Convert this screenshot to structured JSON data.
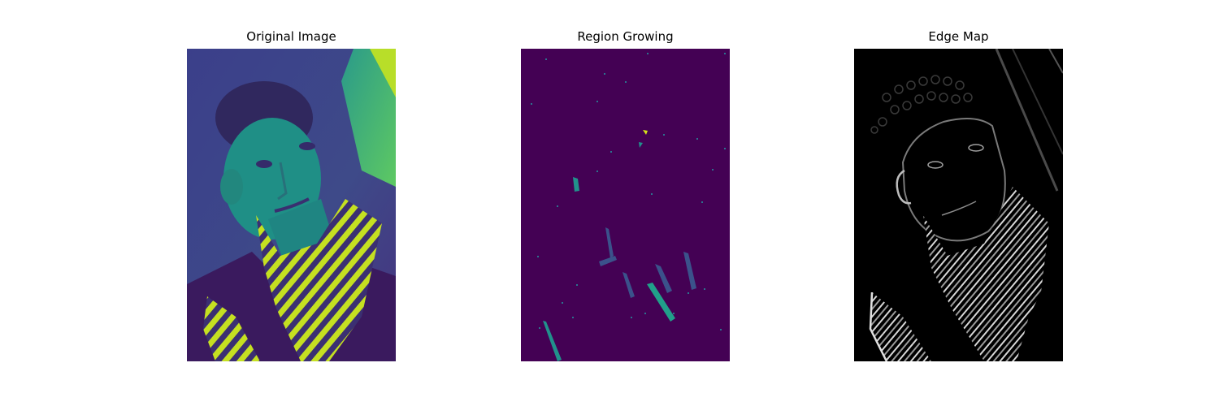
{
  "figure": {
    "panels": [
      {
        "title": "Original Image",
        "colormap": "viridis"
      },
      {
        "title": "Region Growing",
        "colormap": "viridis"
      },
      {
        "title": "Edge Map",
        "colormap": "gray"
      }
    ]
  },
  "colors": {
    "viridis_dark": "#440154",
    "viridis_blue": "#3b528b",
    "viridis_teal": "#21918c",
    "viridis_green": "#5ec962",
    "viridis_yellow": "#fde725",
    "edge_black": "#000000",
    "edge_white": "#ffffff"
  }
}
